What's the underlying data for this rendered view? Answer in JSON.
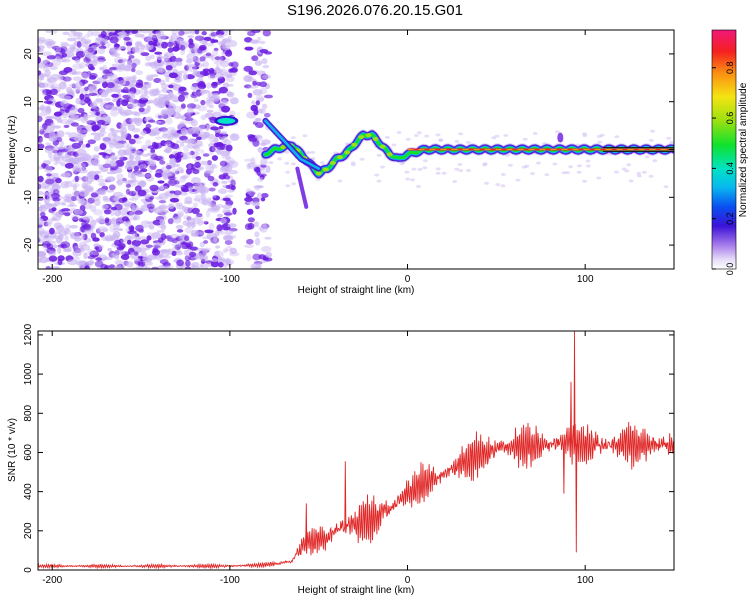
{
  "title": "S196.2026.076.20.15.G01",
  "colors": {
    "signal_line": "#e02828",
    "axis": "#000000",
    "scatter_primary": "#6a1be0",
    "scatter_light": "#c9b3f2",
    "signal_zero_line": "#111111"
  },
  "chart_data": [
    {
      "type": "heatmap",
      "name": "spectrogram",
      "xlabel": "Height of straight line (km)",
      "ylabel": "Frequency (Hz)",
      "xlim": [
        -208,
        150
      ],
      "ylim": [
        -25,
        25
      ],
      "xticks": [
        -200,
        -100,
        0,
        100
      ],
      "xtick_labels": [
        "-200",
        "-100",
        "0",
        "100"
      ],
      "yticks": [
        -20,
        -10,
        0,
        10,
        20
      ],
      "ytick_labels": [
        "-20",
        "-10",
        "0",
        "10",
        "20"
      ],
      "noise_region_x": [
        -208,
        -78
      ],
      "signal_track": {
        "x": [
          -80,
          -75,
          -70,
          -65,
          -60,
          -55,
          -50,
          -45,
          -40,
          -35,
          -30,
          -25,
          -20,
          -15,
          -10,
          -5,
          0,
          10,
          20,
          40,
          60,
          80,
          100,
          150
        ],
        "freq": [
          -1,
          0,
          0.5,
          1,
          -1,
          -3,
          -5,
          -4,
          -2,
          -1,
          1,
          3,
          3,
          1,
          -1,
          -2,
          -1,
          0,
          0,
          0,
          0,
          0,
          0,
          0
        ]
      },
      "upper_track": {
        "x": [
          -80,
          -75,
          -70,
          -65,
          -60,
          -55,
          -50
        ],
        "freq": [
          6,
          4,
          2,
          0,
          -2,
          -3,
          -4
        ]
      },
      "blob_100": {
        "x": -102,
        "freq": 6
      },
      "colorbar": {
        "label": "Normalized spectral amplitude",
        "range": [
          0,
          0.95
        ],
        "ticks": [
          0.0,
          0.2,
          0.4,
          0.6,
          0.8
        ],
        "tick_labels": [
          "0.0",
          "0.2",
          "0.4",
          "0.6",
          "0.8"
        ]
      }
    },
    {
      "type": "line",
      "name": "snr",
      "xlabel": "Height of straight line (km)",
      "ylabel": "SNR (10 * v/v)",
      "xlim": [
        -208,
        150
      ],
      "ylim": [
        0,
        1220
      ],
      "xticks": [
        -200,
        -100,
        0,
        100
      ],
      "xtick_labels": [
        "-200",
        "-100",
        "0",
        "100"
      ],
      "yticks": [
        0,
        200,
        400,
        600,
        800,
        1000,
        1200
      ],
      "ytick_labels": [
        "0",
        "200",
        "400",
        "600",
        "800",
        "1000",
        "1200"
      ],
      "envelope": {
        "x": [
          -208,
          -100,
          -85,
          -75,
          -65,
          -60,
          -55,
          -45,
          -40,
          -30,
          -20,
          -10,
          0,
          10,
          20,
          30,
          40,
          50,
          60,
          70,
          80,
          90,
          100,
          110,
          120,
          130,
          140,
          150
        ],
        "mean": [
          20,
          20,
          25,
          30,
          45,
          120,
          150,
          160,
          210,
          240,
          260,
          320,
          390,
          440,
          490,
          540,
          590,
          620,
          630,
          630,
          640,
          650,
          640,
          640,
          640,
          640,
          640,
          640
        ],
        "amp": [
          8,
          10,
          10,
          15,
          20,
          80,
          70,
          80,
          110,
          110,
          110,
          110,
          100,
          100,
          100,
          110,
          110,
          110,
          110,
          110,
          110,
          110,
          110,
          110,
          110,
          110,
          110,
          110
        ]
      },
      "spikes": [
        {
          "x": -57,
          "y": 340
        },
        {
          "x": -35,
          "y": 555
        },
        {
          "x": 92,
          "y": 960
        },
        {
          "x": 94,
          "y": 1220
        },
        {
          "x": 95,
          "y": 90
        },
        {
          "x": 88,
          "y": 390
        }
      ]
    }
  ]
}
